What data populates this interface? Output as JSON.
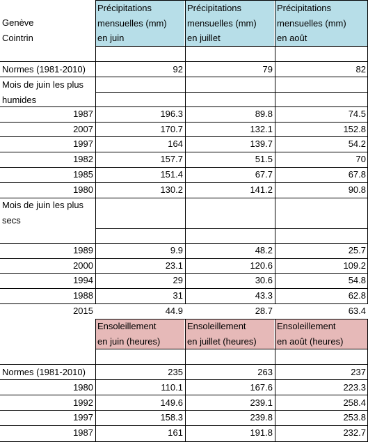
{
  "station": {
    "line1": "Genève",
    "line2": "Cointrin"
  },
  "precip_section": {
    "headers": [
      [
        "Précipitations",
        "mensuelles (mm)",
        "en juin"
      ],
      [
        "Précipitations",
        "mensuelles (mm)",
        "en juillet"
      ],
      [
        "Précipitations",
        "mensuelles (mm)",
        "en août"
      ]
    ],
    "normes": {
      "label": "Normes (1981-2010)",
      "values": [
        "92",
        "79",
        "82"
      ]
    },
    "wet_label": [
      "Mois de juin les plus",
      "humides"
    ],
    "wet_rows": [
      {
        "year": "1987",
        "values": [
          "196.3",
          "89.8",
          "74.5"
        ]
      },
      {
        "year": "2007",
        "values": [
          "170.7",
          "132.1",
          "152.8"
        ]
      },
      {
        "year": "1997",
        "values": [
          "164",
          "139.7",
          "54.2"
        ]
      },
      {
        "year": "1982",
        "values": [
          "157.7",
          "51.5",
          "70"
        ]
      },
      {
        "year": "1985",
        "values": [
          "151.4",
          "67.7",
          "67.8"
        ]
      },
      {
        "year": "1980",
        "values": [
          "130.2",
          "141.2",
          "90.8"
        ]
      }
    ],
    "dry_label": [
      "Mois de juin les plus",
      "secs"
    ],
    "dry_rows": [
      {
        "year": "1989",
        "values": [
          "9.9",
          "48.2",
          "25.7"
        ]
      },
      {
        "year": "2000",
        "values": [
          "23.1",
          "120.6",
          "109.2"
        ]
      },
      {
        "year": "1994",
        "values": [
          "29",
          "30.6",
          "54.8"
        ]
      },
      {
        "year": "1988",
        "values": [
          "31",
          "43.3",
          "62.8"
        ]
      },
      {
        "year": "2015",
        "values": [
          "44.9",
          "28.7",
          "63.4"
        ]
      }
    ]
  },
  "sun_section": {
    "headers": [
      [
        "Ensoleillement",
        "en juin  (heures)"
      ],
      [
        "Ensoleillement",
        "en juillet (heures)"
      ],
      [
        "Ensoleillement",
        "en août (heures)"
      ]
    ],
    "normes": {
      "label": "Normes (1981-2010)",
      "values": [
        "235",
        "263",
        "237"
      ]
    },
    "rows": [
      {
        "year": "1980",
        "values": [
          "110.1",
          "167.6",
          "223.3"
        ]
      },
      {
        "year": "1992",
        "values": [
          "149.6",
          "239.1",
          "258.4"
        ]
      },
      {
        "year": "1997",
        "values": [
          "158.3",
          "239.8",
          "253.8"
        ]
      },
      {
        "year": "1987",
        "values": [
          "161",
          "191.8",
          "232.7"
        ]
      }
    ]
  },
  "colors": {
    "precip_header": "#b7dee8",
    "sun_header": "#e6b9b8"
  }
}
